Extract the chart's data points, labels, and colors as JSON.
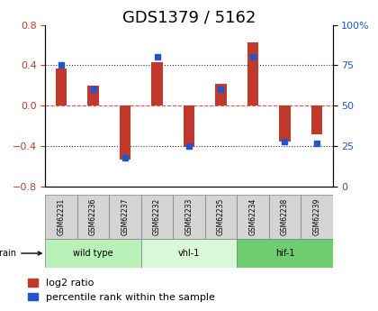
{
  "title": "GDS1379 / 5162",
  "samples": [
    "GSM62231",
    "GSM62236",
    "GSM62237",
    "GSM62232",
    "GSM62233",
    "GSM62235",
    "GSM62234",
    "GSM62238",
    "GSM62239"
  ],
  "log2_ratio": [
    0.37,
    0.2,
    -0.53,
    0.43,
    -0.41,
    0.22,
    0.63,
    -0.35,
    -0.28
  ],
  "percentile_rank": [
    75,
    60,
    18,
    80,
    25,
    60,
    80,
    28,
    27
  ],
  "groups": [
    {
      "label": "wild type",
      "start": 0,
      "end": 3,
      "color": "#b8f0b8"
    },
    {
      "label": "vhl-1",
      "start": 3,
      "end": 6,
      "color": "#d8f8d8"
    },
    {
      "label": "hif-1",
      "start": 6,
      "end": 9,
      "color": "#6fcd6f"
    }
  ],
  "ylim_left": [
    -0.8,
    0.8
  ],
  "ylim_right": [
    0,
    100
  ],
  "yticks_left": [
    -0.8,
    -0.4,
    0,
    0.4,
    0.8
  ],
  "ytick_labels_right": [
    "0",
    "25",
    "50",
    "75",
    "100%"
  ],
  "bar_color_red": "#c0392b",
  "bar_color_blue": "#2255cc",
  "hline_color_red": "#e05050",
  "hline_color_black": "#333333",
  "title_fontsize": 13,
  "tick_fontsize": 8,
  "legend_fontsize": 8,
  "bar_width": 0.35
}
